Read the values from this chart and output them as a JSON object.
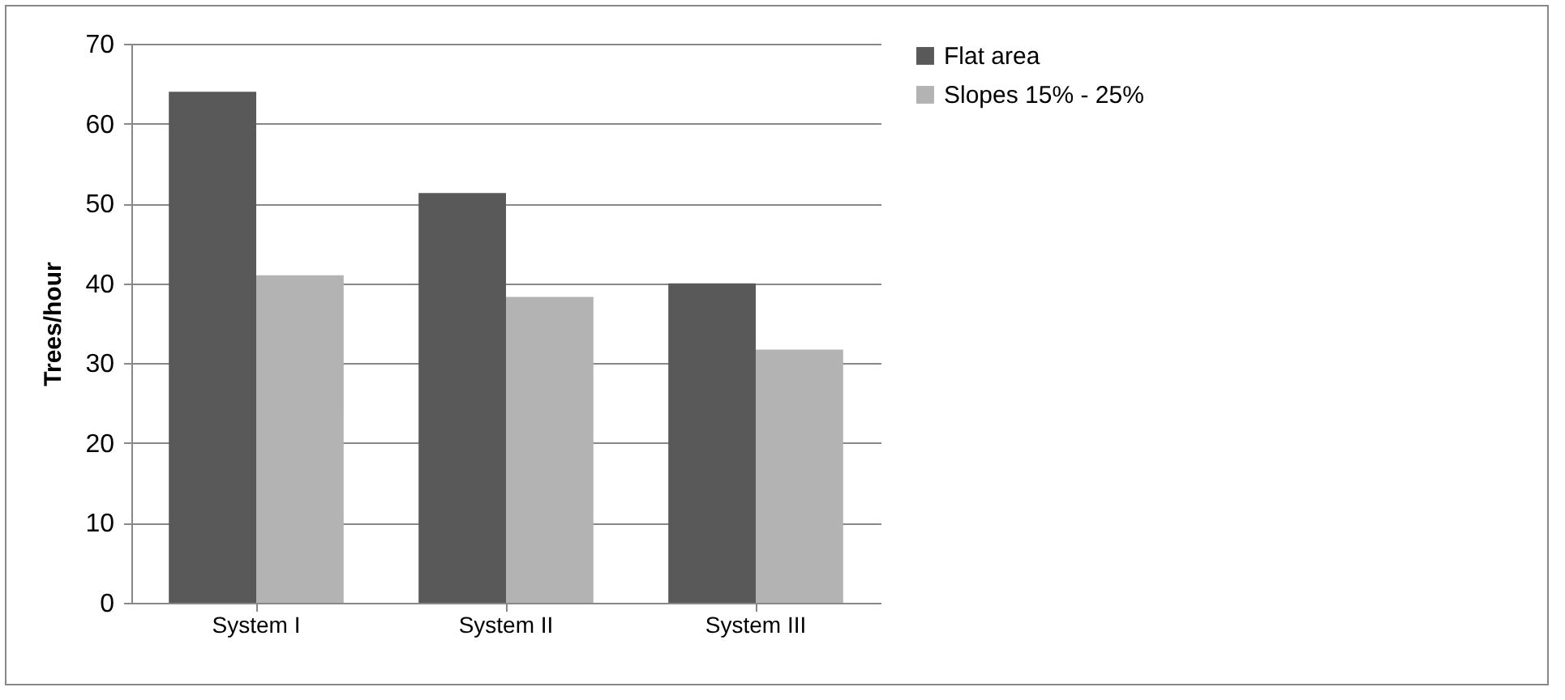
{
  "chart_data": {
    "type": "bar",
    "ylabel": "Trees/hour",
    "categories": [
      "System I",
      "System II",
      "System III"
    ],
    "series": [
      {
        "name": "Flat area",
        "color": "#595959",
        "values": [
          64,
          51.3,
          40
        ]
      },
      {
        "name": "Slopes 15% - 25%",
        "color": "#b3b3b3",
        "values": [
          41,
          38.3,
          31.7
        ]
      }
    ],
    "ylim": [
      0,
      70
    ],
    "yticks": [
      0,
      10,
      20,
      30,
      40,
      50,
      60,
      70
    ],
    "grid": "y",
    "legend": "right"
  }
}
